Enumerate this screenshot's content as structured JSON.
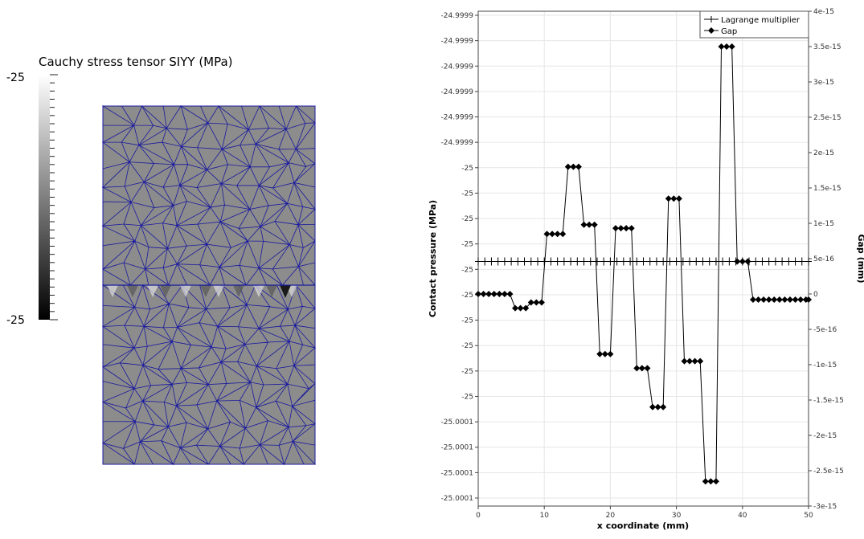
{
  "colorbar": {
    "title": "Cauchy stress tensor SIYY (MPa)",
    "max_label": "-25",
    "min_label": "-25",
    "gradient_top": "#ffffff",
    "gradient_bottom": "#000000",
    "tick_count": 30
  },
  "mesh": {
    "background": "#8c8c8c",
    "edge_color": "#1a1a9e",
    "cols": 11,
    "top_block_rows": 9,
    "bottom_block_rows": 9,
    "hotspot_count": 11
  },
  "chart_data": {
    "type": "line",
    "xlabel": "x coordinate (mm)",
    "ylabel_left": "Contact pressure (MPa)",
    "ylabel_right": "Gap (mm)",
    "xlim": [
      0,
      50
    ],
    "x_ticks": [
      "0",
      "10",
      "20",
      "30",
      "40",
      "50"
    ],
    "left_ticks": [
      "-24.9999",
      "-24.9999",
      "-24.9999",
      "-24.9999",
      "-24.9999",
      "-24.9999",
      "-25",
      "-25",
      "-25",
      "-25",
      "-25",
      "-25",
      "-25",
      "-25",
      "-25",
      "-25",
      "-25.0001",
      "-25.0001",
      "-25.0001",
      "-25.0001"
    ],
    "right_ticks": [
      "4e-15",
      "3.5e-15",
      "3e-15",
      "2.5e-15",
      "2e-15",
      "1.5e-15",
      "1e-15",
      "5e-16",
      "0",
      "-5e-16",
      "-1e-15",
      "-1.5e-15",
      "-2e-15",
      "-2.5e-15",
      "-3e-15"
    ],
    "right_ylim": [
      -3e-15,
      4e-15
    ],
    "grid": true,
    "legend_position": "top-right",
    "series": [
      {
        "name": "Lagrange multiplier",
        "axis": "right",
        "marker": "plus",
        "x": [
          0,
          1.0,
          2.0,
          3.0,
          4.0,
          5.0,
          6.0,
          7.0,
          8.0,
          9.0,
          10.0,
          11.0,
          12.0,
          13.0,
          14.0,
          15.0,
          16.0,
          17.0,
          18.0,
          19.0,
          20.0,
          21.0,
          22.0,
          23.0,
          24.0,
          25.0,
          26.0,
          27.0,
          28.0,
          29.0,
          30.0,
          31.0,
          32.0,
          33.0,
          34.0,
          35.0,
          36.0,
          37.0,
          38.0,
          39.0,
          40.0,
          41.0,
          42.0,
          43.0,
          44.0,
          45.0,
          46.0,
          47.0,
          48.0,
          49.0,
          50.0
        ],
        "y": [
          4.6e-16,
          4.6e-16,
          4.6e-16,
          4.6e-16,
          4.6e-16,
          4.6e-16,
          4.6e-16,
          4.6e-16,
          4.6e-16,
          4.6e-16,
          4.6e-16,
          4.6e-16,
          4.6e-16,
          4.6e-16,
          4.6e-16,
          4.6e-16,
          4.6e-16,
          4.6e-16,
          4.6e-16,
          4.6e-16,
          4.6e-16,
          4.6e-16,
          4.6e-16,
          4.6e-16,
          4.6e-16,
          4.6e-16,
          4.6e-16,
          4.6e-16,
          4.6e-16,
          4.6e-16,
          4.6e-16,
          4.6e-16,
          4.6e-16,
          4.6e-16,
          4.6e-16,
          4.6e-16,
          4.6e-16,
          4.6e-16,
          4.6e-16,
          4.6e-16,
          4.6e-16,
          4.6e-16,
          4.6e-16,
          4.6e-16,
          4.6e-16,
          4.6e-16,
          4.6e-16,
          4.6e-16,
          4.6e-16,
          4.6e-16,
          4.6e-16
        ]
      },
      {
        "name": "Gap",
        "axis": "right",
        "marker": "diamond",
        "x": [
          0,
          0.8,
          1.6,
          2.4,
          3.2,
          4.0,
          4.8,
          5.6,
          6.4,
          7.2,
          8.0,
          8.8,
          9.6,
          10.4,
          11.2,
          12.0,
          12.8,
          13.6,
          14.4,
          15.2,
          16.0,
          16.8,
          17.6,
          18.4,
          19.2,
          20.0,
          20.8,
          21.6,
          22.4,
          23.2,
          24.0,
          24.8,
          25.6,
          26.4,
          27.2,
          28.0,
          28.8,
          29.6,
          30.4,
          31.2,
          32.0,
          32.8,
          33.6,
          34.4,
          35.2,
          36.0,
          36.8,
          37.6,
          38.4,
          39.2,
          40.0,
          40.8,
          41.6,
          42.4,
          43.2,
          44.0,
          44.8,
          45.6,
          46.4,
          47.2,
          48.0,
          48.8,
          49.6,
          50.0
        ],
        "y": [
          0.0,
          0.0,
          0.0,
          0.0,
          0.0,
          0.0,
          0.0,
          -2e-16,
          -2e-16,
          -2e-16,
          -1.2e-16,
          -1.2e-16,
          -1.2e-16,
          8.5e-16,
          8.5e-16,
          8.5e-16,
          8.5e-16,
          1.8e-15,
          1.8e-15,
          1.8e-15,
          9.8e-16,
          9.8e-16,
          9.8e-16,
          -8.5e-16,
          -8.5e-16,
          -8.5e-16,
          9.3e-16,
          9.3e-16,
          9.3e-16,
          9.3e-16,
          -1.05e-15,
          -1.05e-15,
          -1.05e-15,
          -1.6e-15,
          -1.6e-15,
          -1.6e-15,
          1.35e-15,
          1.35e-15,
          1.35e-15,
          -9.5e-16,
          -9.5e-16,
          -9.5e-16,
          -9.5e-16,
          -2.65e-15,
          -2.65e-15,
          -2.65e-15,
          3.5e-15,
          3.5e-15,
          3.5e-15,
          4.6e-16,
          4.6e-16,
          4.6e-16,
          -8e-17,
          -8e-17,
          -8e-17,
          -8e-17,
          -8e-17,
          -8e-17,
          -8e-17,
          -8e-17,
          -8e-17,
          -8e-17,
          -8e-17,
          -8e-17
        ]
      }
    ]
  }
}
